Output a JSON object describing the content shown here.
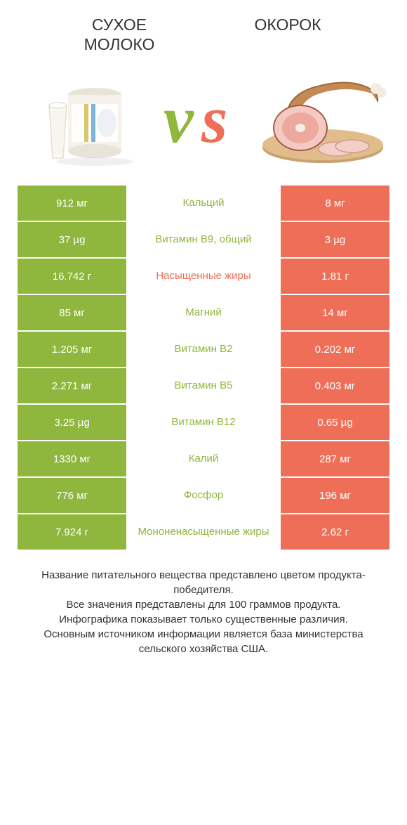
{
  "colors": {
    "left_accent": "#8fb63d",
    "right_accent": "#ef6e57",
    "text_dark": "#333333",
    "white": "#ffffff"
  },
  "header": {
    "left_title": "Сухое\nмолоко",
    "right_title": "Окорок",
    "vs_text": "vs"
  },
  "table": {
    "rows": [
      {
        "left": "912 мг",
        "label": "Кальций",
        "right": "8 мг",
        "winner": "left"
      },
      {
        "left": "37 µg",
        "label": "Витамин B9, общий",
        "right": "3 µg",
        "winner": "left"
      },
      {
        "left": "16.742 г",
        "label": "Насыщенные жиры",
        "right": "1.81 г",
        "winner": "right"
      },
      {
        "left": "85 мг",
        "label": "Магний",
        "right": "14 мг",
        "winner": "left"
      },
      {
        "left": "1.205 мг",
        "label": "Витамин B2",
        "right": "0.202 мг",
        "winner": "left"
      },
      {
        "left": "2.271 мг",
        "label": "Витамин B5",
        "right": "0.403 мг",
        "winner": "left"
      },
      {
        "left": "3.25 µg",
        "label": "Витамин B12",
        "right": "0.65 µg",
        "winner": "left"
      },
      {
        "left": "1330 мг",
        "label": "Калий",
        "right": "287 мг",
        "winner": "left"
      },
      {
        "left": "776 мг",
        "label": "Фосфор",
        "right": "196 мг",
        "winner": "left"
      },
      {
        "left": "7.924 г",
        "label": "Мононенасыщенные жиры",
        "right": "2.62 г",
        "winner": "left"
      }
    ]
  },
  "footer": {
    "line1": "Название питательного вещества представлено цветом продукта-победителя.",
    "line2": "Все значения представлены для 100 граммов продукта.",
    "line3": "Инфографика показывает только существенные различия.",
    "line4": "Основным источником информации является база министерства сельского хозяйства США."
  }
}
